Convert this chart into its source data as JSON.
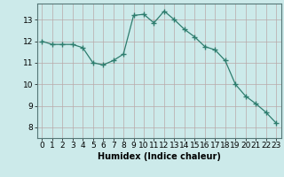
{
  "x": [
    0,
    1,
    2,
    3,
    4,
    5,
    6,
    7,
    8,
    9,
    10,
    11,
    12,
    13,
    14,
    15,
    16,
    17,
    18,
    19,
    20,
    21,
    22,
    23
  ],
  "y": [
    12.0,
    11.85,
    11.85,
    11.85,
    11.7,
    11.0,
    10.9,
    11.1,
    11.4,
    13.2,
    13.25,
    12.85,
    13.4,
    13.0,
    12.55,
    12.2,
    11.75,
    11.6,
    11.1,
    10.0,
    9.45,
    9.1,
    8.7,
    8.2
  ],
  "line_color": "#2e7d6e",
  "marker": "D",
  "marker_size": 2.5,
  "bg_color": "#cceaea",
  "grid_color_major": "#b8a8a8",
  "grid_color_minor": "#d8cccc",
  "xlabel": "Humidex (Indice chaleur)",
  "ylim": [
    7.5,
    13.75
  ],
  "xlim": [
    -0.5,
    23.5
  ],
  "yticks": [
    8,
    9,
    10,
    11,
    12,
    13
  ],
  "xticks": [
    0,
    1,
    2,
    3,
    4,
    5,
    6,
    7,
    8,
    9,
    10,
    11,
    12,
    13,
    14,
    15,
    16,
    17,
    18,
    19,
    20,
    21,
    22,
    23
  ],
  "xlabel_fontsize": 7.0,
  "tick_fontsize": 6.5
}
